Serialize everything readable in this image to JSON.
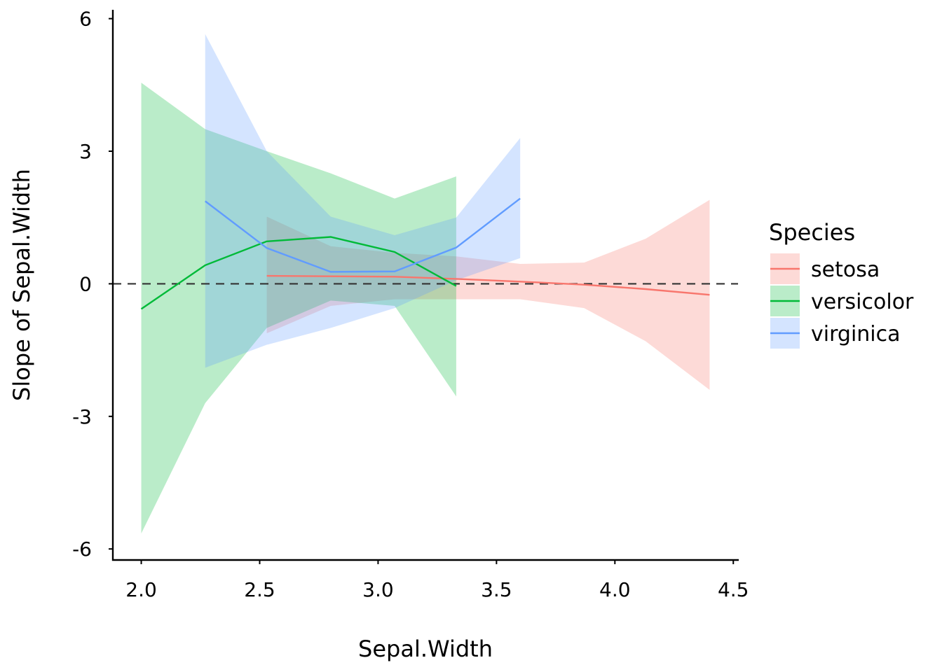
{
  "chart_data": {
    "type": "line",
    "xlabel": "Sepal.Width",
    "ylabel": "Slope of Sepal.Width",
    "xlim": [
      1.88,
      4.52
    ],
    "ylim": [
      -6.25,
      6.2
    ],
    "xticks": [
      2.0,
      2.5,
      3.0,
      3.5,
      4.0,
      4.5
    ],
    "xtick_labels": [
      "2.0",
      "2.5",
      "3.0",
      "3.5",
      "4.0",
      "4.5"
    ],
    "yticks": [
      6,
      3,
      0,
      -3,
      -6
    ],
    "ytick_labels": [
      "6",
      "3",
      "0",
      "-3",
      "-6"
    ],
    "reference_line": {
      "y": 0,
      "style": "dashed"
    },
    "grid": false,
    "legend": {
      "title": "Species",
      "position": "right"
    },
    "series": [
      {
        "name": "setosa",
        "color": "#F8766D",
        "x": [
          2.53,
          2.8,
          3.07,
          3.33,
          3.6,
          3.87,
          4.13,
          4.4
        ],
        "y": [
          0.18,
          0.17,
          0.16,
          0.11,
          0.05,
          -0.02,
          -0.12,
          -0.25
        ],
        "lower": [
          -1.12,
          -0.5,
          -0.35,
          -0.35,
          -0.35,
          -0.55,
          -1.3,
          -2.4
        ],
        "upper": [
          1.52,
          0.85,
          0.7,
          0.62,
          0.45,
          0.48,
          1.02,
          1.9
        ]
      },
      {
        "name": "versicolor",
        "color": "#00BA38",
        "x": [
          2.0,
          2.27,
          2.53,
          2.8,
          3.07,
          3.33
        ],
        "y": [
          -0.57,
          0.42,
          0.96,
          1.06,
          0.72,
          -0.05
        ],
        "lower": [
          -5.65,
          -2.7,
          -1.0,
          -0.38,
          -0.5,
          -2.55
        ],
        "upper": [
          4.55,
          3.5,
          3.0,
          2.5,
          1.93,
          2.43
        ]
      },
      {
        "name": "virginica",
        "color": "#619CFF",
        "x": [
          2.27,
          2.53,
          2.8,
          3.07,
          3.33,
          3.6
        ],
        "y": [
          1.87,
          0.81,
          0.27,
          0.28,
          0.82,
          1.93
        ],
        "lower": [
          -1.9,
          -1.38,
          -1.0,
          -0.55,
          0.08,
          0.58
        ],
        "upper": [
          5.65,
          3.0,
          1.52,
          1.1,
          1.5,
          3.3
        ]
      }
    ]
  }
}
